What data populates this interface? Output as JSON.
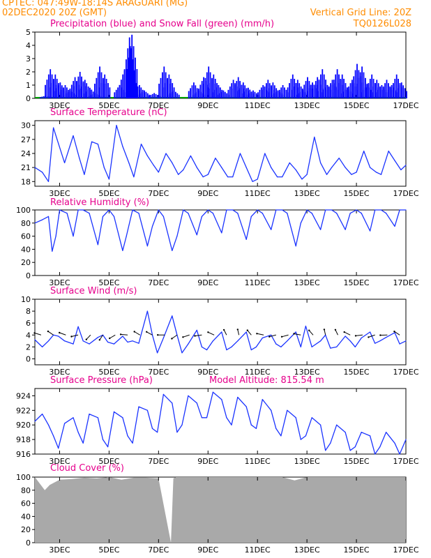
{
  "header": {
    "line1": "CPTEC:   047:49W-18:14S   ARAGUARI (MG)",
    "line2_left": "02DEC2020 20Z (GMT)",
    "line2_right": "Vertical Grid Line: 20Z",
    "line3_right": "TQ0126L028"
  },
  "colors": {
    "header": "#ff8c00",
    "panel_title": "#e6008c",
    "precip": "#0000ff",
    "snow": "#00a000",
    "line": "#1a33ff",
    "cloud": "#a9a9a9"
  },
  "x_axis": {
    "start_day": 2.0,
    "end_day": 17.0,
    "tick_days": [
      3,
      5,
      7,
      9,
      11,
      13,
      15,
      17
    ],
    "tick_labels": [
      "3DEC",
      "5DEC",
      "7DEC",
      "9DEC",
      "11DEC",
      "13DEC",
      "15DEC",
      "17DEC"
    ]
  },
  "panels": {
    "precip": {
      "title": "Precipitation (blue) and Snow Fall (green) (mm/h)"
    },
    "temp": {
      "title": "Surface Temperature (nC)"
    },
    "rh": {
      "title": "Relative Humidity (%)"
    },
    "wind": {
      "title": "Surface Wind (m/s)"
    },
    "pres": {
      "title": "Surface Pressure (hPa)",
      "extra": "Model Altitude: 815.54 m"
    },
    "cloud": {
      "title": "Cloud Cover (%)"
    }
  },
  "chart_data": [
    {
      "type": "bar",
      "title": "Precipitation (blue) and Snow Fall (green) (mm/h)",
      "ylim": [
        0,
        5
      ],
      "yticks": [
        0,
        1,
        2,
        3,
        4,
        5
      ],
      "grid": false,
      "x": [
        2.4,
        2.6,
        2.8,
        3.0,
        3.2,
        3.4,
        3.6,
        3.8,
        4.0,
        4.2,
        4.4,
        4.6,
        4.8,
        5.4,
        5.6,
        5.8,
        5.9,
        6.0,
        6.2,
        6.4,
        6.8,
        7.2,
        7.4,
        7.6,
        8.4,
        8.6,
        8.8,
        9.0,
        9.2,
        9.4,
        9.6,
        10.0,
        10.2,
        10.4,
        10.6,
        10.8,
        11.2,
        11.4,
        11.6,
        11.8,
        12.0,
        12.4,
        12.6,
        12.8,
        13.0,
        13.2,
        13.4,
        13.6,
        13.8,
        14.0,
        14.2,
        14.4,
        14.6,
        14.8,
        15.0,
        15.2,
        15.4,
        15.6,
        15.8,
        16.0,
        16.2,
        16.4,
        16.6,
        16.8
      ],
      "values": [
        0.2,
        2.2,
        1.8,
        1.2,
        1.0,
        0.6,
        1.6,
        2.0,
        1.4,
        0.8,
        0.4,
        2.4,
        1.8,
        1.0,
        2.2,
        4.6,
        4.8,
        1.4,
        1.0,
        0.6,
        0.4,
        2.4,
        1.8,
        0.6,
        1.2,
        0.6,
        1.6,
        2.4,
        1.8,
        1.0,
        0.6,
        1.4,
        1.6,
        1.2,
        0.8,
        0.6,
        1.0,
        1.4,
        1.2,
        0.6,
        1.0,
        1.8,
        1.4,
        0.6,
        1.6,
        1.2,
        1.6,
        2.2,
        1.0,
        1.4,
        2.2,
        1.8,
        0.8,
        1.4,
        2.6,
        2.4,
        1.0,
        1.8,
        1.4,
        1.0,
        1.4,
        1.0,
        1.8,
        1.2
      ],
      "snow_values": []
    },
    {
      "type": "line",
      "title": "Surface Temperature (nC)",
      "ylim": [
        17,
        31
      ],
      "yticks": [
        18,
        21,
        24,
        27,
        30
      ],
      "x": [
        2.0,
        2.3,
        2.55,
        2.75,
        2.9,
        3.2,
        3.55,
        3.8,
        4.0,
        4.3,
        4.55,
        4.8,
        5.0,
        5.3,
        5.55,
        5.8,
        6.0,
        6.3,
        6.55,
        6.8,
        7.0,
        7.3,
        7.55,
        7.8,
        8.0,
        8.3,
        8.55,
        8.8,
        9.0,
        9.3,
        9.55,
        9.8,
        10.0,
        10.3,
        10.55,
        10.8,
        11.0,
        11.3,
        11.55,
        11.8,
        12.0,
        12.3,
        12.55,
        12.8,
        13.0,
        13.3,
        13.55,
        13.8,
        14.0,
        14.3,
        14.55,
        14.8,
        15.0,
        15.3,
        15.55,
        15.8,
        16.0,
        16.3,
        16.55,
        16.8,
        17.0
      ],
      "values": [
        21.0,
        20.0,
        18.0,
        29.5,
        27.0,
        22.0,
        27.8,
        23.0,
        19.5,
        26.5,
        26.0,
        21.0,
        18.5,
        30.0,
        25.5,
        22.0,
        19.0,
        26.0,
        23.5,
        21.5,
        20.0,
        24.0,
        22.0,
        19.5,
        20.5,
        23.5,
        21.0,
        19.0,
        19.5,
        23.0,
        21.0,
        19.0,
        19.0,
        24.0,
        21.0,
        18.0,
        18.5,
        24.0,
        21.0,
        19.0,
        19.0,
        22.0,
        20.5,
        18.5,
        19.5,
        27.5,
        22.0,
        19.5,
        21.0,
        23.0,
        21.0,
        19.5,
        20.0,
        24.5,
        21.0,
        20.0,
        19.5,
        24.5,
        22.5,
        20.5,
        21.5
      ]
    },
    {
      "type": "line",
      "title": "Relative Humidity (%)",
      "ylim": [
        0,
        100
      ],
      "yticks": [
        0,
        20,
        40,
        60,
        80,
        100
      ],
      "x": [
        2.0,
        2.3,
        2.55,
        2.7,
        2.85,
        3.0,
        3.3,
        3.55,
        3.75,
        3.95,
        4.2,
        4.55,
        4.75,
        5.0,
        5.2,
        5.55,
        5.7,
        5.95,
        6.2,
        6.55,
        6.75,
        7.0,
        7.2,
        7.55,
        7.75,
        8.0,
        8.2,
        8.55,
        8.75,
        9.0,
        9.2,
        9.55,
        9.75,
        10.0,
        10.2,
        10.55,
        10.75,
        11.0,
        11.2,
        11.55,
        11.75,
        12.0,
        12.2,
        12.55,
        12.75,
        13.0,
        13.2,
        13.55,
        13.75,
        14.0,
        14.2,
        14.55,
        14.75,
        15.0,
        15.2,
        15.55,
        15.75,
        16.0,
        16.2,
        16.55,
        16.75,
        17.0
      ],
      "values": [
        80,
        85,
        90,
        37,
        60,
        100,
        95,
        60,
        100,
        100,
        95,
        47,
        90,
        100,
        90,
        38,
        60,
        100,
        95,
        45,
        75,
        100,
        90,
        38,
        60,
        100,
        95,
        62,
        90,
        100,
        95,
        65,
        100,
        100,
        95,
        55,
        90,
        100,
        95,
        70,
        100,
        100,
        95,
        45,
        80,
        100,
        95,
        70,
        100,
        100,
        95,
        70,
        95,
        100,
        95,
        68,
        100,
        100,
        95,
        75,
        100,
        100
      ]
    },
    {
      "type": "line",
      "title": "Surface Wind (m/s)",
      "ylim": [
        -1,
        10
      ],
      "yticks": [
        0,
        2,
        4,
        6,
        8,
        10
      ],
      "x": [
        2.0,
        2.3,
        2.55,
        2.75,
        2.95,
        3.2,
        3.55,
        3.75,
        3.95,
        4.2,
        4.55,
        4.75,
        4.95,
        5.2,
        5.55,
        5.75,
        5.95,
        6.2,
        6.55,
        6.75,
        6.95,
        7.2,
        7.55,
        7.75,
        7.95,
        8.2,
        8.55,
        8.75,
        8.95,
        9.2,
        9.55,
        9.75,
        9.95,
        10.2,
        10.55,
        10.75,
        10.95,
        11.2,
        11.55,
        11.75,
        11.95,
        12.2,
        12.55,
        12.75,
        12.95,
        13.2,
        13.55,
        13.75,
        13.95,
        14.2,
        14.55,
        14.75,
        14.95,
        15.2,
        15.55,
        15.75,
        15.95,
        16.2,
        16.55,
        16.75,
        17.0
      ],
      "values": [
        3.2,
        2.0,
        3.0,
        4.0,
        3.8,
        3.0,
        2.5,
        5.4,
        3.0,
        2.5,
        3.6,
        4.0,
        2.8,
        2.5,
        3.8,
        2.8,
        3.0,
        2.6,
        8.0,
        4.0,
        1.0,
        3.5,
        7.2,
        4.0,
        1.0,
        2.5,
        4.8,
        2.0,
        1.5,
        3.0,
        4.5,
        1.5,
        2.0,
        3.0,
        4.5,
        1.5,
        2.0,
        3.5,
        4.0,
        2.5,
        2.0,
        3.0,
        4.5,
        2.0,
        5.5,
        2.0,
        3.0,
        4.0,
        1.8,
        2.0,
        3.8,
        3.0,
        2.0,
        3.5,
        4.5,
        2.6,
        3.0,
        3.6,
        4.4,
        2.5,
        3.0
      ]
    },
    {
      "type": "line",
      "title": "Surface Pressure (hPa)",
      "annotation": "Model Altitude: 815.54 m",
      "ylim": [
        916,
        925
      ],
      "yticks": [
        916,
        918,
        920,
        922,
        924
      ],
      "x": [
        2.0,
        2.3,
        2.55,
        2.75,
        2.95,
        3.2,
        3.55,
        3.75,
        3.95,
        4.2,
        4.55,
        4.75,
        4.95,
        5.2,
        5.55,
        5.75,
        5.95,
        6.2,
        6.55,
        6.75,
        6.95,
        7.2,
        7.55,
        7.75,
        7.95,
        8.2,
        8.55,
        8.75,
        8.95,
        9.2,
        9.55,
        9.75,
        9.95,
        10.2,
        10.55,
        10.75,
        10.95,
        11.2,
        11.55,
        11.75,
        11.95,
        12.2,
        12.55,
        12.75,
        12.95,
        13.2,
        13.55,
        13.75,
        13.95,
        14.2,
        14.55,
        14.75,
        14.95,
        15.2,
        15.55,
        15.75,
        15.95,
        16.2,
        16.55,
        16.75,
        17.0
      ],
      "values": [
        920.5,
        921.5,
        920.0,
        918.5,
        916.8,
        920.2,
        921.0,
        919.0,
        917.5,
        921.5,
        921.0,
        918.0,
        917.0,
        921.8,
        921.0,
        918.5,
        917.5,
        922.5,
        922.0,
        919.5,
        919.0,
        924.2,
        923.0,
        919.0,
        920.0,
        924.0,
        923.0,
        921.0,
        921.0,
        924.5,
        923.5,
        921.0,
        920.0,
        923.8,
        922.5,
        920.0,
        919.5,
        923.5,
        922.0,
        919.5,
        918.5,
        922.0,
        921.0,
        918.0,
        918.5,
        921.0,
        920.0,
        916.5,
        917.5,
        920.0,
        919.0,
        916.5,
        917.0,
        919.0,
        918.5,
        916.0,
        917.0,
        919.0,
        917.5,
        916.0,
        918.0
      ]
    },
    {
      "type": "area",
      "title": "Cloud Cover (%)",
      "ylim": [
        0,
        100
      ],
      "yticks": [
        0,
        20,
        40,
        60,
        80,
        100
      ],
      "x": [
        2.0,
        2.2,
        2.4,
        2.6,
        2.8,
        3.0,
        3.5,
        4.0,
        4.5,
        5.0,
        5.5,
        6.0,
        6.5,
        7.0,
        7.5,
        7.6,
        7.7,
        8.0,
        9.0,
        10.0,
        11.0,
        12.0,
        12.5,
        13.0,
        14.0,
        15.0,
        16.0,
        17.0
      ],
      "values": [
        100,
        90,
        80,
        88,
        92,
        96,
        97,
        99,
        98,
        100,
        96,
        99,
        99,
        98,
        0,
        98,
        100,
        100,
        100,
        100,
        100,
        100,
        95,
        100,
        100,
        100,
        100,
        100
      ]
    }
  ]
}
